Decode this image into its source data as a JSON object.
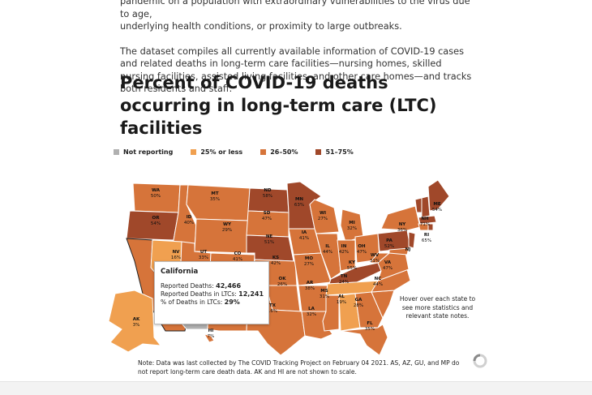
{
  "intro": {
    "line1": "pandemic on a population with extraordinary vulnerabilities to the virus due to age,",
    "line2": "underlying health conditions, or proximity to large outbreaks.",
    "paragraph2": "The dataset compiles all currently available information of COVID-19 cases and related deaths in long-term care facilities—nursing homes, skilled nursing facilities, assisted living facilities, and other care homes—and tracks both residents and staff."
  },
  "title": "Percent of COVID-19 deaths occurring in long-term care (LTC) facilities",
  "legend": [
    {
      "label": "Not reporting",
      "color": "#b0b0b0"
    },
    {
      "label": "25% or less",
      "color": "#f0a050"
    },
    {
      "label": "26–50%",
      "color": "#d6743a"
    },
    {
      "label": "51–75%",
      "color": "#a0482a"
    }
  ],
  "colors": {
    "low": "#f0a050",
    "mid": "#d6743a",
    "high": "#a0482a",
    "stroke": "#ffffff"
  },
  "states": [
    {
      "abbr": "WA",
      "pct": "50%"
    },
    {
      "abbr": "OR",
      "pct": "54%"
    },
    {
      "abbr": "ID",
      "pct": "40%"
    },
    {
      "abbr": "MT",
      "pct": "35%"
    },
    {
      "abbr": "WY",
      "pct": "29%"
    },
    {
      "abbr": "ND",
      "pct": "58%"
    },
    {
      "abbr": "SD",
      "pct": "47%"
    },
    {
      "abbr": "NE",
      "pct": "51%"
    },
    {
      "abbr": "MN",
      "pct": "63%"
    },
    {
      "abbr": "WI",
      "pct": "27%"
    },
    {
      "abbr": "MI",
      "pct": "32%"
    },
    {
      "abbr": "IA",
      "pct": "41%"
    },
    {
      "abbr": "IL",
      "pct": "44%"
    },
    {
      "abbr": "IN",
      "pct": "42%"
    },
    {
      "abbr": "OH",
      "pct": "47%"
    },
    {
      "abbr": "NY",
      "pct": "36%"
    },
    {
      "abbr": "PA",
      "pct": "52%"
    },
    {
      "abbr": "NH",
      "pct": "71%"
    },
    {
      "abbr": "ME",
      "pct": "54%"
    },
    {
      "abbr": "RI",
      "pct": "65%"
    },
    {
      "abbr": "NJ",
      "pct": ""
    },
    {
      "abbr": "NV",
      "pct": "16%"
    },
    {
      "abbr": "UT",
      "pct": "33%"
    },
    {
      "abbr": "CO",
      "pct": "41%"
    },
    {
      "abbr": "KS",
      "pct": "42%"
    },
    {
      "abbr": "MO",
      "pct": "27%"
    },
    {
      "abbr": "KY",
      "pct": "55%"
    },
    {
      "abbr": "WV",
      "pct": "31%"
    },
    {
      "abbr": "VA",
      "pct": "47%"
    },
    {
      "abbr": "OK",
      "pct": "26%"
    },
    {
      "abbr": "AR",
      "pct": "38%"
    },
    {
      "abbr": "TN",
      "pct": "24%"
    },
    {
      "abbr": "NC",
      "pct": "44%"
    },
    {
      "abbr": "TX",
      "pct": "16%"
    },
    {
      "abbr": "LA",
      "pct": "32%"
    },
    {
      "abbr": "MS",
      "pct": "31%"
    },
    {
      "abbr": "AL",
      "pct": "19%"
    },
    {
      "abbr": "GA",
      "pct": "28%"
    },
    {
      "abbr": "FL",
      "pct": "35%"
    },
    {
      "abbr": "AK",
      "pct": "3%"
    },
    {
      "abbr": "HI",
      "pct": "7%"
    }
  ],
  "tooltip": {
    "state": "California",
    "deaths_label": "Reported Deaths:",
    "deaths_value": "42,466",
    "ltc_label": "Reported Deaths in LTCs:",
    "ltc_value": "12,241",
    "pct_label": "% of Deaths in LTCs:",
    "pct_value": "29%"
  },
  "hover_note": "Hover over each state to see more statistics and relevant state notes.",
  "note": "Note: Data was last collected by The COVID Tracking Project on February 04 2021. AS, AZ, GU, and MP do not report long-term care death data. AK and HI are not shown to scale."
}
